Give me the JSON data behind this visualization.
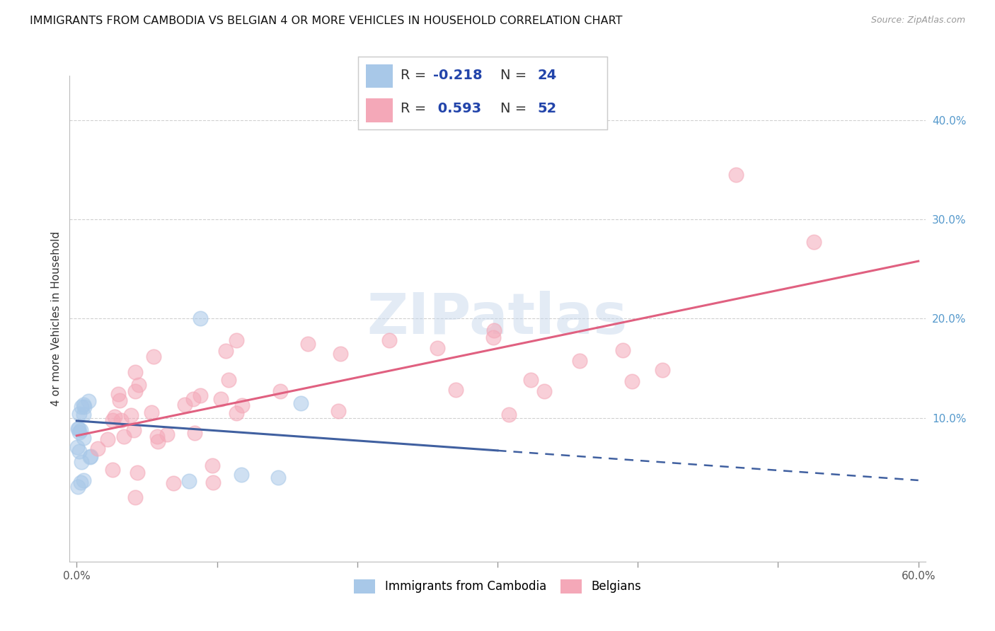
{
  "title": "IMMIGRANTS FROM CAMBODIA VS BELGIAN 4 OR MORE VEHICLES IN HOUSEHOLD CORRELATION CHART",
  "source": "Source: ZipAtlas.com",
  "ylabel": "4 or more Vehicles in Household",
  "xlim": [
    -0.005,
    0.605
  ],
  "ylim": [
    -0.045,
    0.445
  ],
  "xticks": [
    0.0,
    0.1,
    0.2,
    0.3,
    0.4,
    0.5,
    0.6
  ],
  "xticklabels_ends": {
    "0.0": "0.0%",
    "0.6": "60.0%"
  },
  "yticks_right": [
    0.1,
    0.2,
    0.3,
    0.4
  ],
  "yticklabels_right": [
    "10.0%",
    "20.0%",
    "30.0%",
    "40.0%"
  ],
  "watermark": "ZIPatlas",
  "legend_labels_bottom": [
    "Immigrants from Cambodia",
    "Belgians"
  ],
  "R_cambodia": -0.218,
  "N_cambodia": 24,
  "R_belgian": 0.593,
  "N_belgian": 52,
  "blue_color": "#a8c8e8",
  "pink_color": "#f4a8b8",
  "blue_line_color": "#4060a0",
  "pink_line_color": "#e06080",
  "grid_color": "#d0d0d0",
  "background_color": "#ffffff",
  "title_fontsize": 11.5,
  "axis_label_fontsize": 11,
  "tick_fontsize": 11,
  "legend_fontsize": 14,
  "blue_legend_patch": "#a8c8e8",
  "pink_legend_patch": "#f4a8b8",
  "legend_text_dark": "#333333",
  "legend_text_blue": "#2244aa"
}
